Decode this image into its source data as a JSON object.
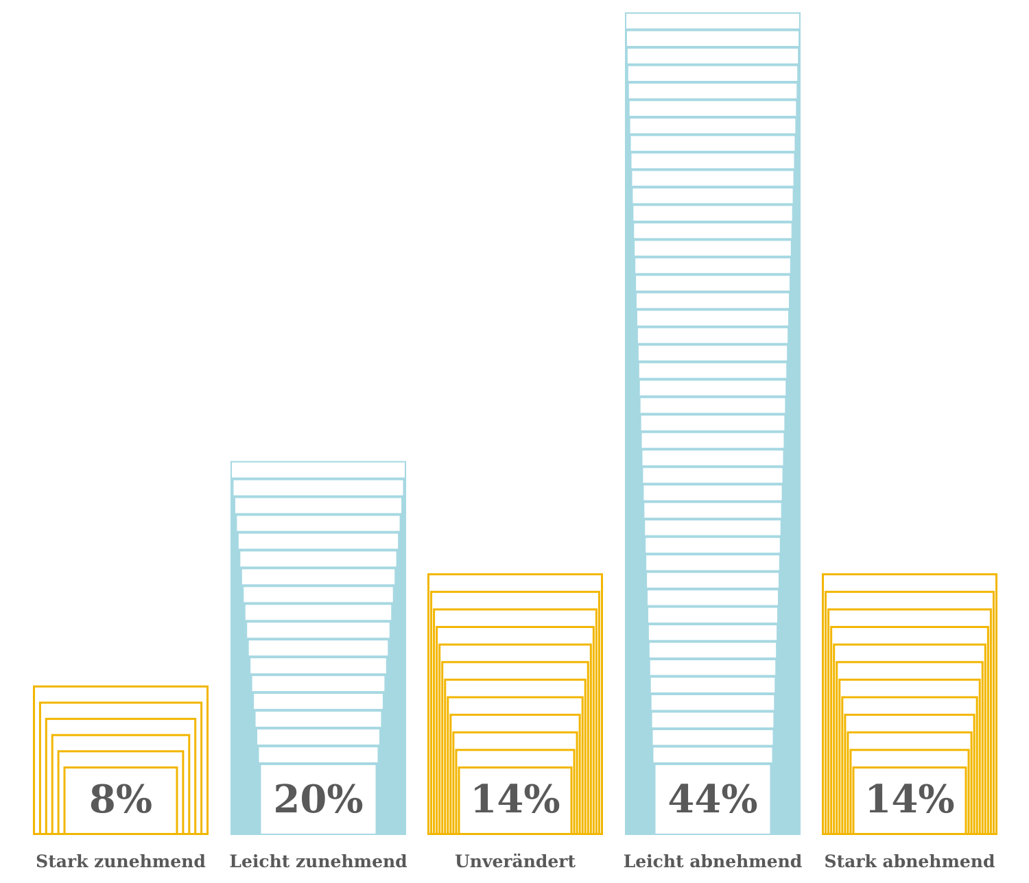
{
  "chart_data": {
    "type": "bar",
    "categories": [
      "Stark zunehmend",
      "Leicht zunehmend",
      "Unverändert",
      "Leicht abnehmend",
      "Stark abnehmend"
    ],
    "values": [
      8,
      20,
      14,
      44,
      14
    ],
    "value_labels": [
      "8%",
      "20%",
      "14%",
      "44%",
      "14%"
    ],
    "ylim": [
      0,
      44
    ],
    "title": "",
    "xlabel": "",
    "ylabel": "",
    "grid": false,
    "bar_colors": [
      "#F2B600",
      "#A6D8E2",
      "#F2B600",
      "#A6D8E2",
      "#F2B600"
    ],
    "colors": {
      "yellow": "#F2B600",
      "blue": "#A6D8E2",
      "label_text": "#595959",
      "background": "#FFFFFF"
    }
  }
}
